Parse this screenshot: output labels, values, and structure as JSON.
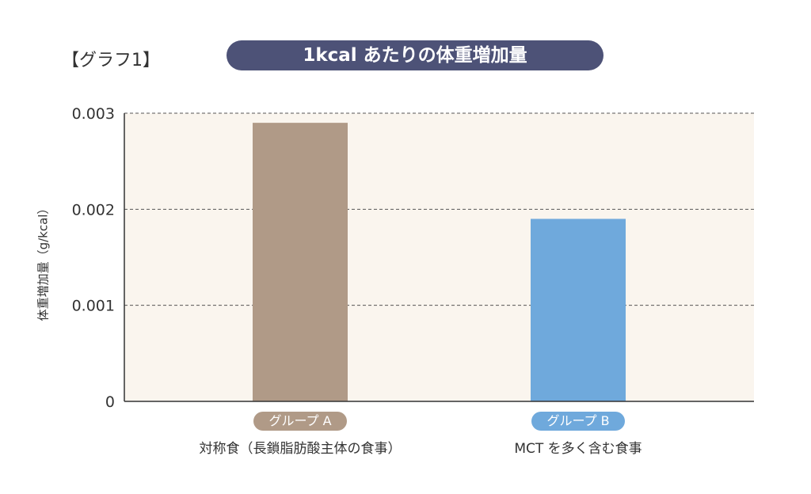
{
  "tag": "【グラフ1】",
  "chart_data": {
    "type": "bar",
    "title": "1kcal あたりの体重増加量",
    "ylabel": "体重増加量（g/kcal）",
    "ylim": [
      0,
      0.003
    ],
    "yticks": [
      "0",
      "0.001",
      "0.002",
      "0.003"
    ],
    "grid": true,
    "categories": [
      {
        "group": "グループ A",
        "label": "対称食（長鎖脂肪酸主体の食事）",
        "color": "#b09a87"
      },
      {
        "group": "グループ B",
        "label": "MCT を多く含む食事",
        "color": "#6fa9dc"
      }
    ],
    "values": [
      0.0029,
      0.0019
    ],
    "plot_background": "#faf5ee",
    "title_background": "#4d5277"
  }
}
